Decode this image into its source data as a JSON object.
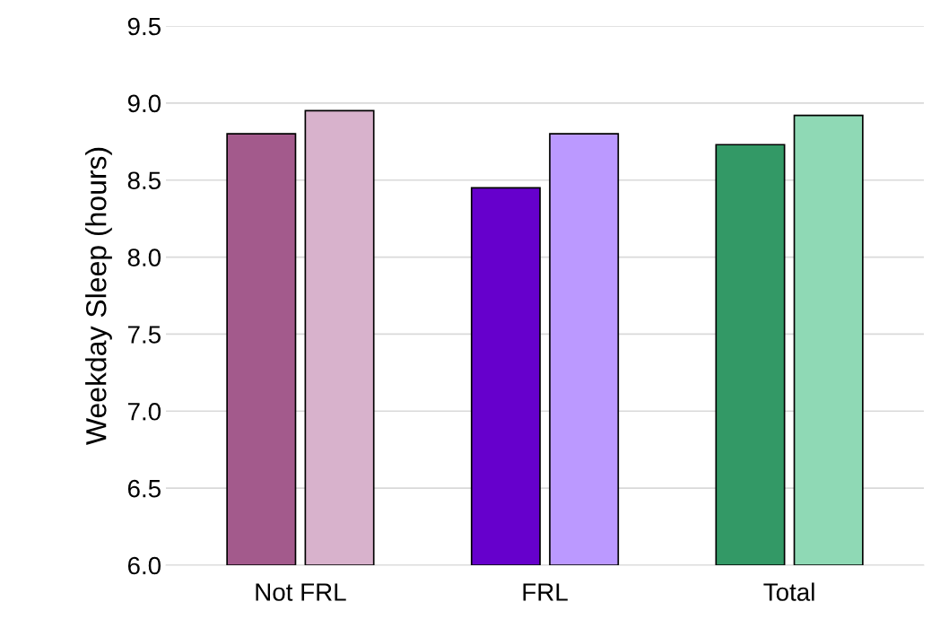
{
  "chart_data": {
    "type": "bar",
    "ylabel": "Weekday Sleep (hours)",
    "categories": [
      "Not FRL",
      "FRL",
      "Total"
    ],
    "series": [
      {
        "colors": [
          "#a35a8c",
          "#6600cc",
          "#339966"
        ],
        "values": [
          8.8,
          8.45,
          8.73
        ]
      },
      {
        "colors": [
          "#d8b2cc",
          "#bb99ff",
          "#8fd9b5"
        ],
        "values": [
          8.95,
          8.8,
          8.92
        ]
      }
    ],
    "ylim": [
      6.0,
      9.5
    ],
    "yticks": [
      {
        "value": 6.0,
        "label": "6.0"
      },
      {
        "value": 6.5,
        "label": "6.5"
      },
      {
        "value": 7.0,
        "label": "7.0"
      },
      {
        "value": 7.5,
        "label": "7.5"
      },
      {
        "value": 8.0,
        "label": "8.0"
      },
      {
        "value": 8.5,
        "label": "8.5"
      },
      {
        "value": 9.0,
        "label": "9.0"
      },
      {
        "value": 9.5,
        "label": "9.5"
      }
    ],
    "grid": "y",
    "legend": false
  }
}
